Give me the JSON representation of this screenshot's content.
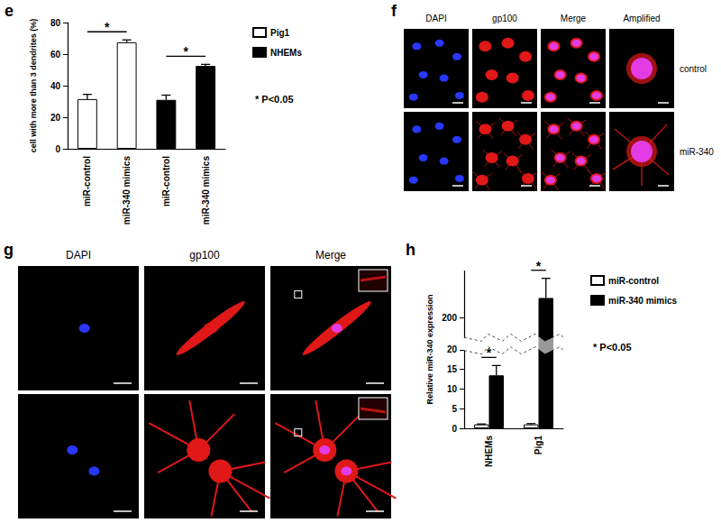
{
  "chart_data": [
    {
      "type": "bar",
      "panel_label": "e",
      "y_label": "cell with more than 3 dendrites (%)",
      "categories": [
        "miR-control",
        "miR-340 mimics",
        "miR-control",
        "miR-340 mimics"
      ],
      "series": [
        {
          "name": "Pig1",
          "color": "#ffffff",
          "values": [
            31.5,
            67.5,
            null,
            null
          ],
          "errors": [
            3,
            1.5,
            null,
            null
          ]
        },
        {
          "name": "NHEMs",
          "color": "#000000",
          "values": [
            null,
            null,
            31,
            52.5
          ],
          "errors": [
            null,
            null,
            3,
            1
          ]
        }
      ],
      "ylim": [
        0,
        80
      ],
      "yticks": [
        0,
        20,
        40,
        60,
        80
      ],
      "grid": false,
      "legend": "right",
      "comparisons": [
        [
          [
            0,
            0
          ],
          [
            1,
            0
          ]
        ],
        [
          [
            2,
            1
          ],
          [
            3,
            1
          ]
        ]
      ],
      "comparison_mark": "*",
      "annotation": "* P<0.05"
    },
    {
      "type": "bar",
      "panel_label": "h",
      "y_label": "Relative miR-340 expression",
      "categories": [
        "NHEMs",
        "Pig1"
      ],
      "series": [
        {
          "name": "miR-control",
          "color": "#ffffff",
          "values": [
            1,
            1
          ],
          "errors": [
            0.1,
            0.2
          ]
        },
        {
          "name": "miR-340 mimics",
          "color": "#000000",
          "values": [
            13.5,
            205
          ],
          "errors": [
            2.5,
            5
          ]
        }
      ],
      "ylim": [
        0,
        212
      ],
      "yticks": [
        0,
        5,
        10,
        15,
        20,
        200
      ],
      "ybreak": [
        20,
        195
      ],
      "grid": false,
      "legend": "right",
      "comparisons": [
        [
          [
            0,
            0
          ],
          [
            0,
            1
          ]
        ],
        [
          [
            1,
            0
          ],
          [
            1,
            1
          ]
        ]
      ],
      "comparison_mark": "*",
      "annotation": "* P<0.05"
    }
  ],
  "panels": [
    {
      "panel_label": "f",
      "columns": [
        "DAPI",
        "gp100",
        "Merge",
        "Amplified"
      ],
      "rows": [
        "control",
        "miR-340"
      ]
    },
    {
      "panel_label": "g",
      "columns": [
        "DAPI",
        "gp100",
        "Merge"
      ]
    }
  ]
}
